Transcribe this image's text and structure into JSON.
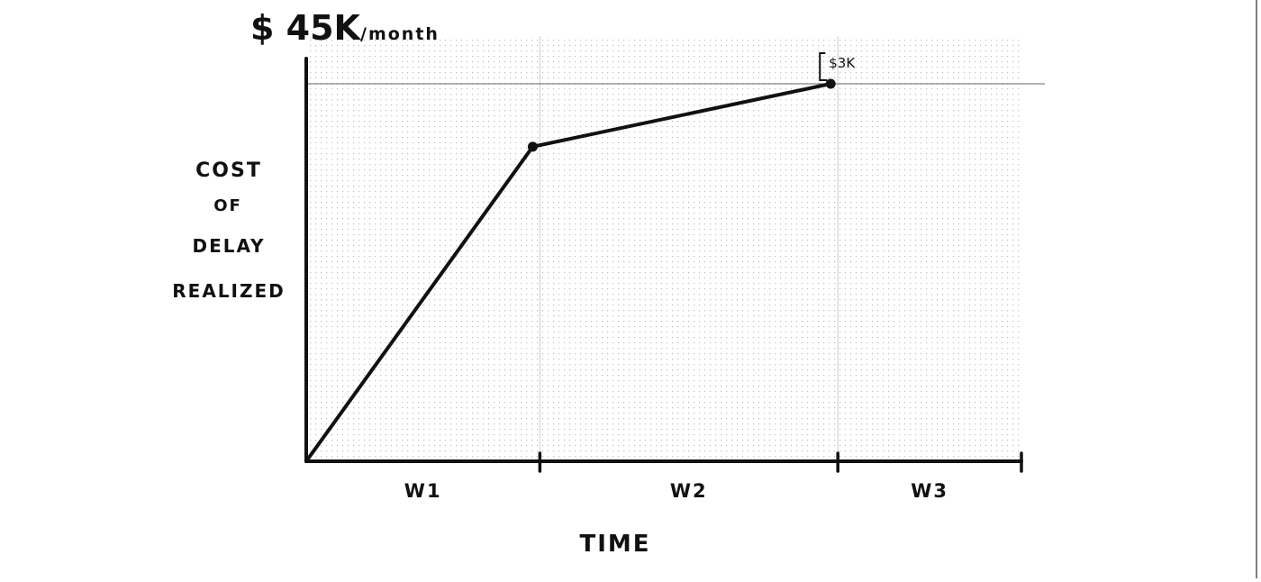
{
  "chart_data": {
    "type": "line",
    "title": "$ 45K/month",
    "title_parts": {
      "amount": "$ 45K",
      "unit": "/month"
    },
    "xlabel": "TIME",
    "ylabel_lines": [
      "COST",
      "OF",
      "DELAY",
      "REALIZED"
    ],
    "categories": [
      "W1",
      "W2",
      "W3"
    ],
    "xlim": [
      0,
      3
    ],
    "ylim": [
      0,
      45
    ],
    "series": [
      {
        "x": [
          0,
          0.95,
          2.2
        ],
        "y": [
          0,
          37.5,
          45
        ]
      }
    ],
    "markers": [
      {
        "x": 0.95,
        "y": 37.5
      },
      {
        "x": 2.2,
        "y": 45
      }
    ],
    "reference_line_y": 45,
    "annotation": {
      "text": "$3K",
      "x": 2.2,
      "y": 45
    },
    "grid": true,
    "colors": {
      "line": "#111111",
      "grid": "#c8c8c8",
      "background": "#ffffff"
    }
  }
}
